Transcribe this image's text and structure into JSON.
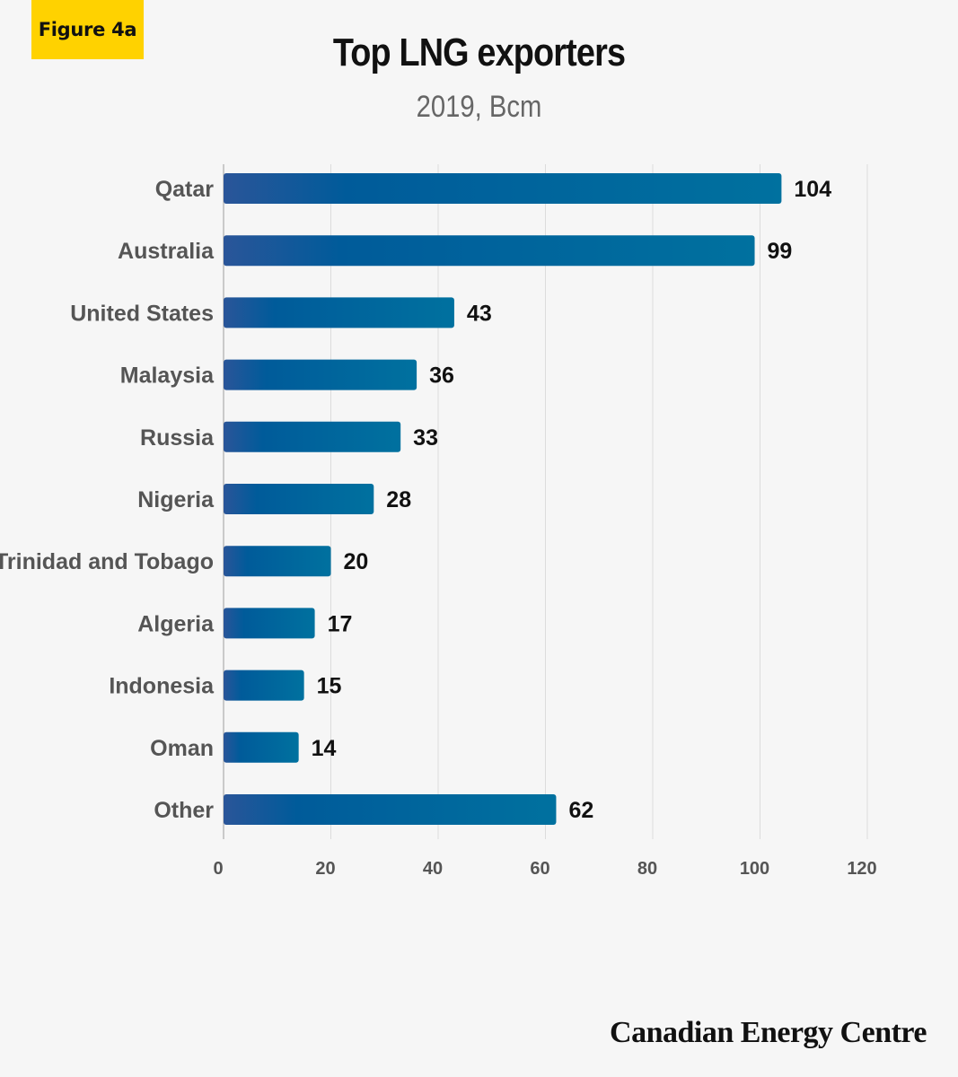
{
  "badge": "Figure 4a",
  "footer": "Canadian Energy Centre",
  "colors": {
    "bar_start": "#2a5599",
    "bar_mid": "#005b9a",
    "bar_end": "#00719f",
    "badge": "#ffd200"
  },
  "chart_data": {
    "type": "bar",
    "orientation": "horizontal",
    "title": "Top LNG exporters",
    "subtitle": "2019, Bcm",
    "categories": [
      "Qatar",
      "Australia",
      "United States",
      "Malaysia",
      "Russia",
      "Nigeria",
      "Trinidad and Tobago",
      "Algeria",
      "Indonesia",
      "Oman",
      "Other"
    ],
    "values": [
      104,
      99,
      43,
      36,
      33,
      28,
      20,
      17,
      15,
      14,
      62
    ],
    "xlim": [
      0,
      120
    ],
    "xticks": [
      0,
      20,
      40,
      60,
      80,
      100,
      120
    ],
    "grid": true,
    "legend": "none"
  }
}
